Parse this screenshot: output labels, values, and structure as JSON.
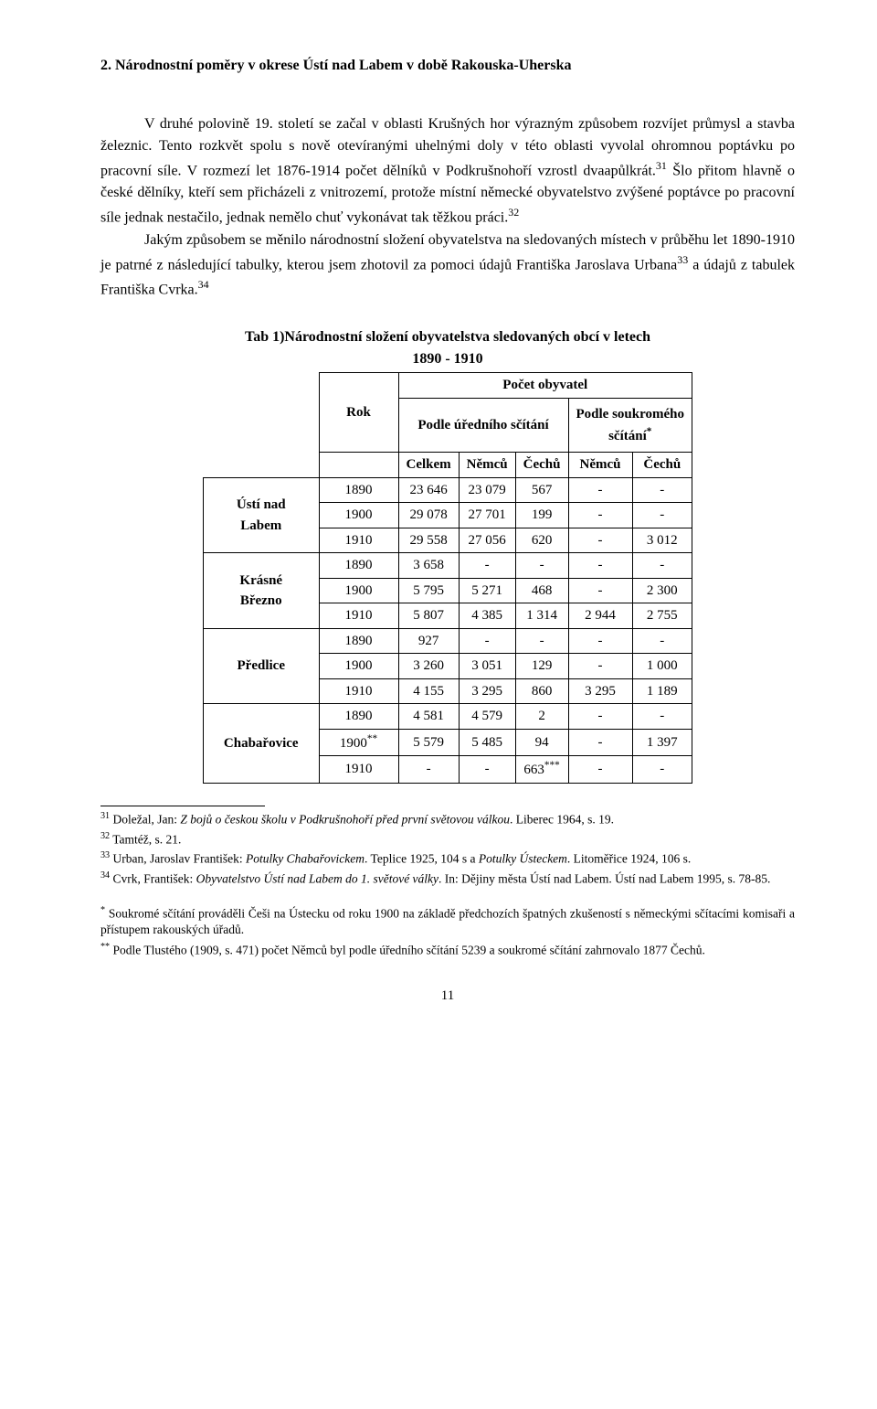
{
  "section_title": "2. Národnostní poměry v okrese Ústí nad Labem v době Rakouska-Uherska",
  "para1": "V druhé polovině 19. století se začal v oblasti Krušných hor výrazným způsobem rozvíjet průmysl a stavba železnic. Tento rozkvět spolu s nově otevíranými uhelnými doly v této oblasti vyvolal ohromnou poptávku po pracovní síle. V rozmezí let 1876-1914 počet dělníků v Podkrušnohoří vzrostl dvaapůlkrát.",
  "para1_sup": "31",
  "para1_cont": " Šlo přitom hlavně o české dělníky, kteří sem přicházeli z vnitrozemí, protože místní německé obyvatelstvo zvýšené poptávce po pracovní síle jednak nestačilo, jednak nemělo chuť vykonávat tak těžkou práci.",
  "para1_sup2": "32",
  "para2": "Jakým způsobem se měnilo národnostní složení obyvatelstva na sledovaných místech v průběhu let 1890-1910 je patrné z následující tabulky, kterou jsem zhotovil za pomoci údajů Františka Jaroslava Urbana",
  "para2_sup": "33",
  "para2_cont": " a údajů z tabulek Františka Cvrka.",
  "para2_sup2": "34",
  "table": {
    "caption_l1": "Tab 1)Národnostní složení obyvatelstva sledovaných obcí v letech",
    "caption_l2": "1890 - 1910",
    "hdr_pocet": "Počet obyvatel",
    "hdr_rok": "Rok",
    "hdr_uredni": "Podle úředního sčítání",
    "hdr_soukrome_l1": "Podle soukromého",
    "hdr_soukrome_l2": "sčítání",
    "col_celkem": "Celkem",
    "col_nemcu": "Němců",
    "col_cechu": "Čechů",
    "places": [
      "Ústí nad Labem",
      "Krásné Březno",
      "Předlice",
      "Chabařovice"
    ],
    "rows": [
      {
        "place_idx": 0,
        "rok": "1890",
        "cells": [
          "23 646",
          "23 079",
          "567",
          "-",
          "-"
        ]
      },
      {
        "place_idx": 0,
        "rok": "1900",
        "cells": [
          "29 078",
          "27 701",
          "199",
          "-",
          "-"
        ]
      },
      {
        "place_idx": 0,
        "rok": "1910",
        "cells": [
          "29 558",
          "27 056",
          "620",
          "-",
          "3 012"
        ]
      },
      {
        "place_idx": 1,
        "rok": "1890",
        "cells": [
          "3 658",
          "-",
          "-",
          "-",
          "-"
        ]
      },
      {
        "place_idx": 1,
        "rok": "1900",
        "cells": [
          "5 795",
          "5 271",
          "468",
          "-",
          "2 300"
        ]
      },
      {
        "place_idx": 1,
        "rok": "1910",
        "cells": [
          "5 807",
          "4 385",
          "1 314",
          "2 944",
          "2 755"
        ]
      },
      {
        "place_idx": 2,
        "rok": "1890",
        "cells": [
          "927",
          "-",
          "-",
          "-",
          "-"
        ]
      },
      {
        "place_idx": 2,
        "rok": "1900",
        "cells": [
          "3 260",
          "3 051",
          "129",
          "-",
          "1 000"
        ]
      },
      {
        "place_idx": 2,
        "rok": "1910",
        "cells": [
          "4 155",
          "3 295",
          "860",
          "3 295",
          "1 189"
        ]
      },
      {
        "place_idx": 3,
        "rok": "1890",
        "cells": [
          "4 581",
          "4 579",
          "2",
          "-",
          "-"
        ]
      },
      {
        "place_idx": 3,
        "rok": "1900**",
        "cells": [
          "5 579",
          "5 485",
          "94",
          "-",
          "1 397"
        ]
      },
      {
        "place_idx": 3,
        "rok": "1910",
        "cells": [
          "-",
          "-",
          "663***",
          "-",
          "-"
        ]
      }
    ]
  },
  "footnotes": {
    "f31_a": "31",
    "f31_b": " Doležal, Jan: ",
    "f31_i": "Z bojů o českou školu v Podkrušnohoří před první světovou válkou",
    "f31_c": ". Liberec 1964, s. 19.",
    "f32_a": "32",
    "f32_b": " Tamtéž, s. 21.",
    "f33_a": "33",
    "f33_b": " Urban, Jaroslav František: ",
    "f33_i1": "Potulky Chabařovickem",
    "f33_c": ". Teplice 1925, 104 s a ",
    "f33_i2": "Potulky Ústeckem",
    "f33_d": ". Litoměřice 1924, 106 s.",
    "f34_a": "34",
    "f34_b": " Cvrk, František: ",
    "f34_i": "Obyvatelstvo Ústí nad Labem do 1. světové války",
    "f34_c": ". In: Dějiny města Ústí nad Labem. Ústí nad Labem 1995, s. 78-85."
  },
  "endnotes": {
    "e1_sup": "*",
    "e1": " Soukromé sčítání prováděli Češi na Ústecku od roku 1900 na základě předchozích špatných zkušeností s německými sčítacími komisaři a přístupem rakouských úřadů.",
    "e2_sup": "**",
    "e2": " Podle Tlustého  (1909, s. 471) počet Němců byl podle úředního sčítání 5239 a soukromé sčítání zahrnovalo 1877 Čechů.",
    "e3_sup": "***"
  },
  "page_number": "11"
}
